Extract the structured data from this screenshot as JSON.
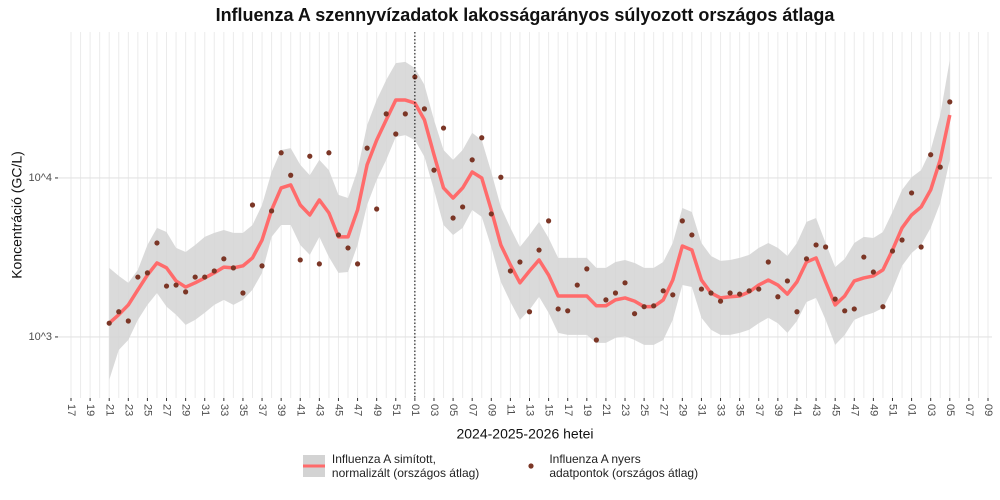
{
  "chart_data": {
    "type": "line",
    "title": "Influenza A szennyvízadatok lakosságarányos súlyozott országos átlaga",
    "x_label": "2024-2025-2026 hetei",
    "y_label": "Koncentráció (GC/L)",
    "yscale": "log",
    "ylim": [
      413,
      82800
    ],
    "yticks": [
      {
        "value": 1000,
        "label": "10^3"
      },
      {
        "value": 10000,
        "label": "10^4"
      }
    ],
    "grid": true,
    "legend": "bottom",
    "vline": {
      "category_index": 36,
      "linestyle": "dotted"
    },
    "categories": [
      "17",
      null,
      "19",
      null,
      "21",
      null,
      "23",
      null,
      "25",
      null,
      "27",
      null,
      "29",
      null,
      "31",
      null,
      "33",
      null,
      "35",
      null,
      "37",
      null,
      "39",
      null,
      "41",
      null,
      "43",
      null,
      "45",
      null,
      "47",
      null,
      "49",
      null,
      "51",
      null,
      "01",
      null,
      "03",
      null,
      "05",
      null,
      "07",
      null,
      "09",
      null,
      "11",
      null,
      "13",
      null,
      "15",
      null,
      "17",
      null,
      "19",
      null,
      "21",
      null,
      "23",
      null,
      "25",
      null,
      "27",
      null,
      "29",
      null,
      "31",
      null,
      "33",
      null,
      "35",
      null,
      "37",
      null,
      "39",
      null,
      "41",
      null,
      "43",
      null,
      "45",
      null,
      "47",
      null,
      "49",
      null,
      "51",
      null,
      "01",
      null,
      "03",
      null,
      "05",
      null,
      "07",
      null,
      "09"
    ],
    "series": [
      {
        "name": "Influenza A simított,\n normalizált (országos átlag)",
        "style": "line",
        "color": "#ff6b6b",
        "band_color": "#d3d3d3",
        "values": [
          null,
          null,
          null,
          null,
          1220,
          1380,
          1590,
          1980,
          2450,
          2920,
          2720,
          2250,
          2060,
          2190,
          2350,
          2530,
          2750,
          2720,
          2800,
          3140,
          4070,
          6290,
          8650,
          9040,
          6760,
          5850,
          7270,
          6030,
          4260,
          4260,
          6290,
          12100,
          17300,
          23200,
          30900,
          30900,
          29600,
          23200,
          14000,
          8650,
          7480,
          8650,
          10900,
          10000,
          6290,
          3790,
          2840,
          2190,
          2600,
          3050,
          2450,
          1810,
          1810,
          1810,
          1810,
          1570,
          1570,
          1710,
          1760,
          1680,
          1550,
          1550,
          1710,
          2280,
          3730,
          3520,
          2280,
          1890,
          1760,
          1790,
          1810,
          1920,
          2120,
          2280,
          2120,
          1860,
          2220,
          2960,
          3140,
          2220,
          1590,
          1810,
          2250,
          2350,
          2420,
          2640,
          3520,
          4850,
          5850,
          6570,
          8410,
          13000,
          24900,
          null,
          null,
          null,
          null
        ],
        "lower": [
          null,
          null,
          null,
          null,
          537,
          828,
          957,
          1280,
          1590,
          1890,
          1550,
          1380,
          1190,
          1280,
          1420,
          1590,
          1710,
          1590,
          1710,
          1980,
          2530,
          4260,
          5060,
          5060,
          3790,
          3280,
          4260,
          3180,
          2530,
          2560,
          3790,
          6760,
          9710,
          13000,
          18100,
          18600,
          17300,
          13600,
          8410,
          5060,
          4380,
          4850,
          6290,
          5690,
          3680,
          2220,
          1660,
          1280,
          1480,
          1790,
          1420,
          1060,
          1030,
          1030,
          1030,
          917,
          917,
          986,
          1010,
          957,
          891,
          891,
          957,
          1280,
          2120,
          2060,
          1320,
          1110,
          1030,
          1030,
          1060,
          1110,
          1220,
          1320,
          1220,
          1060,
          1260,
          1660,
          1760,
          1280,
          891,
          1030,
          1280,
          1360,
          1420,
          1520,
          1980,
          2800,
          3370,
          3790,
          4850,
          6960,
          13000,
          null,
          null,
          null,
          null
        ],
        "upper": [
          null,
          null,
          null,
          null,
          2720,
          2420,
          2190,
          2640,
          3790,
          4850,
          4570,
          3630,
          3420,
          3790,
          4260,
          4510,
          4710,
          4510,
          4510,
          5060,
          6760,
          10900,
          15000,
          15400,
          12100,
          10400,
          13000,
          11200,
          7820,
          7480,
          11200,
          21500,
          30900,
          41300,
          52800,
          53700,
          49200,
          38500,
          23200,
          15000,
          13000,
          15000,
          19200,
          17300,
          10900,
          6570,
          4850,
          3680,
          4380,
          5290,
          4190,
          3140,
          3140,
          3140,
          3140,
          2720,
          2720,
          2960,
          3050,
          2920,
          2720,
          2720,
          2960,
          3900,
          6470,
          6110,
          3900,
          3230,
          3010,
          3050,
          3140,
          3280,
          3630,
          3900,
          3630,
          3230,
          3900,
          5290,
          5600,
          3900,
          2750,
          3100,
          3900,
          4260,
          4190,
          4570,
          6110,
          8410,
          10100,
          11200,
          15000,
          24900,
          55200,
          null,
          null,
          null,
          null
        ]
      },
      {
        "name": "Influenza A nyers\n adatpontok (országos átlag)",
        "style": "points",
        "color": "#7b3626",
        "values": [
          null,
          null,
          null,
          null,
          1220,
          1440,
          1260,
          2380,
          2530,
          3900,
          2090,
          2120,
          1920,
          2380,
          2380,
          2600,
          3100,
          2720,
          1890,
          6760,
          2800,
          6200,
          14400,
          10400,
          3050,
          13700,
          2880,
          14400,
          4380,
          3630,
          2880,
          15400,
          6380,
          25300,
          18900,
          25300,
          43200,
          27200,
          11200,
          20600,
          5600,
          6570,
          13000,
          17900,
          5940,
          10100,
          2600,
          2960,
          1440,
          3520,
          5370,
          1500,
          1460,
          2120,
          2680,
          957,
          1710,
          1890,
          2190,
          1400,
          1550,
          1570,
          1950,
          1840,
          5370,
          4380,
          2000,
          1890,
          1680,
          1890,
          1860,
          1950,
          2000,
          2960,
          1790,
          2250,
          1440,
          3100,
          3790,
          3680,
          1730,
          1460,
          1500,
          3180,
          2560,
          1550,
          3470,
          4070,
          8050,
          3680,
          14000,
          11700,
          30100,
          null,
          null,
          null,
          null
        ]
      }
    ]
  }
}
